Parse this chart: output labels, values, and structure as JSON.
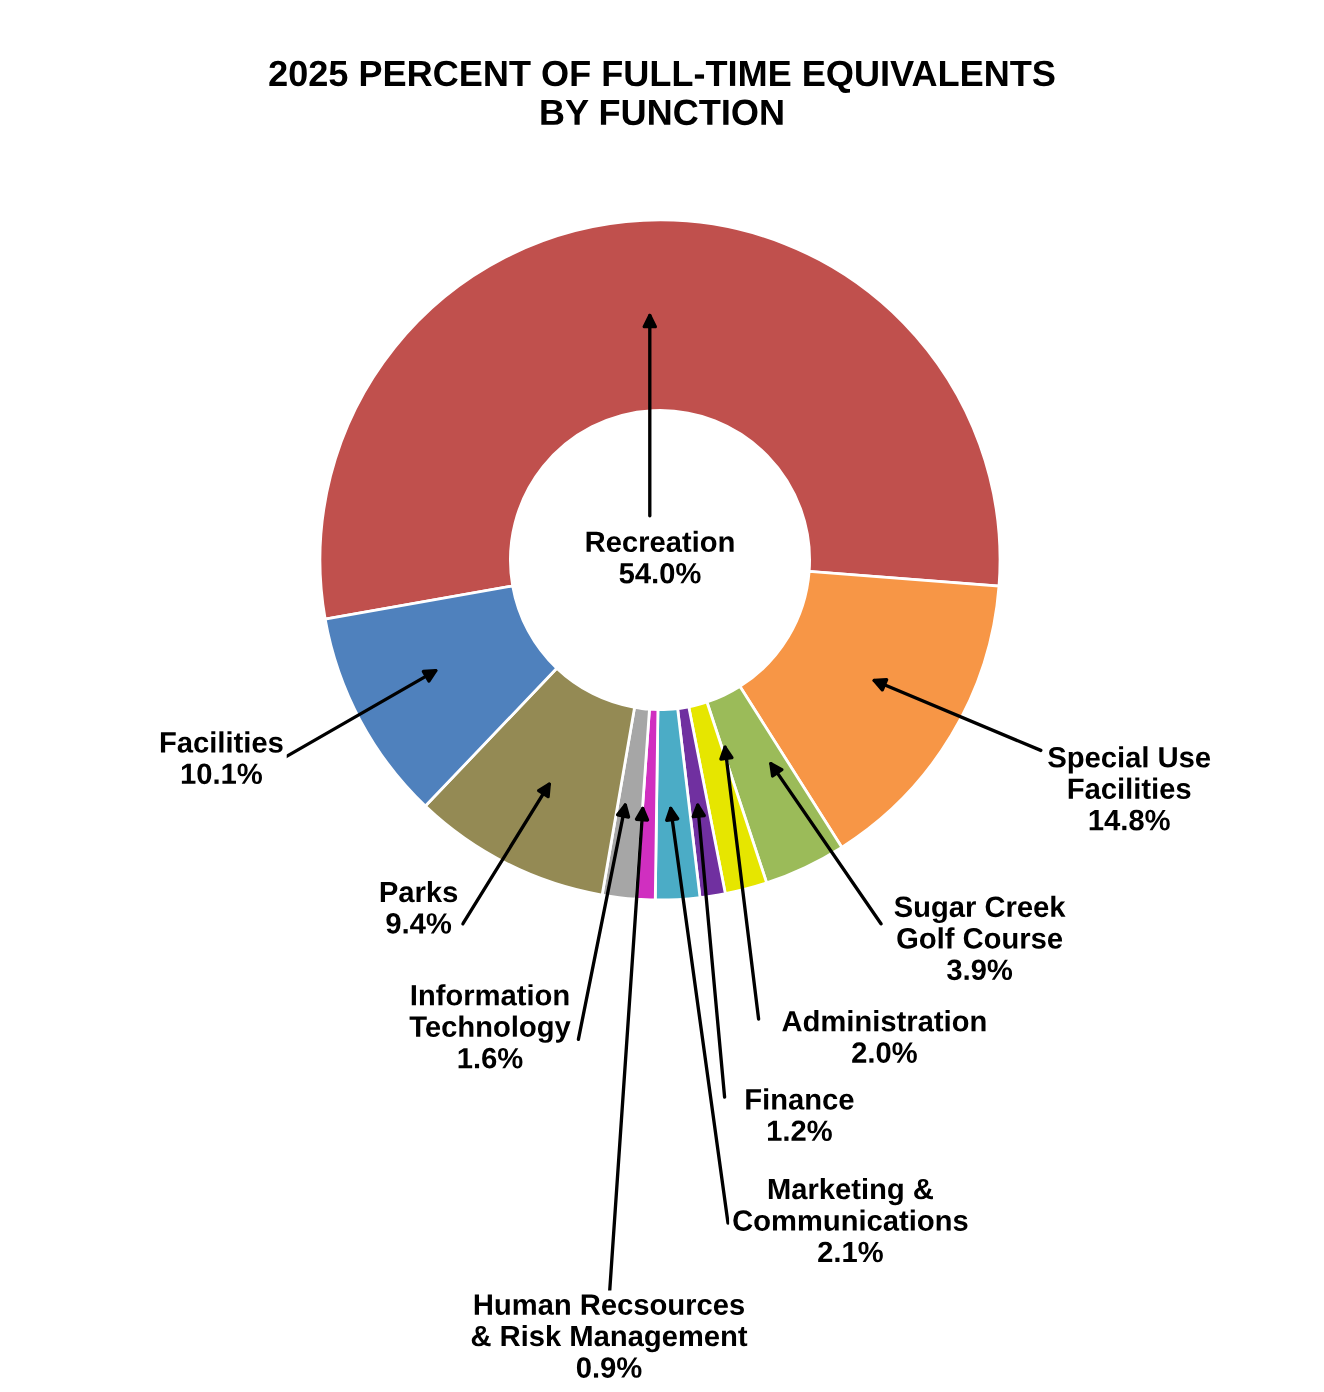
{
  "chart_data": {
    "type": "donut",
    "title": "2025 PERCENT OF FULL-TIME EQUIVALENTS\nBY FUNCTION",
    "categories": [
      "Recreation",
      "Special Use\nFacilities",
      "Sugar Creek\nGolf Course",
      "Administration",
      "Finance",
      "Marketing &\nCommunications",
      "Human Recsources\n& Risk Management",
      "Information\nTechnology",
      "Parks",
      "Facilities"
    ],
    "values": [
      54.0,
      14.8,
      3.9,
      2.0,
      1.2,
      2.1,
      0.9,
      1.6,
      9.4,
      10.1
    ],
    "colors": [
      "#c0504d",
      "#f79646",
      "#9bbb59",
      "#e6e600",
      "#7030a0",
      "#4bacc6",
      "#d02fc0",
      "#a6a6a6",
      "#948a54",
      "#4f81bd"
    ],
    "value_labels": [
      "54.0%",
      "14.8%",
      "3.9%",
      "2.0%",
      "1.2%",
      "2.1%",
      "0.9%",
      "1.6%",
      "9.4%",
      "10.1%"
    ]
  }
}
